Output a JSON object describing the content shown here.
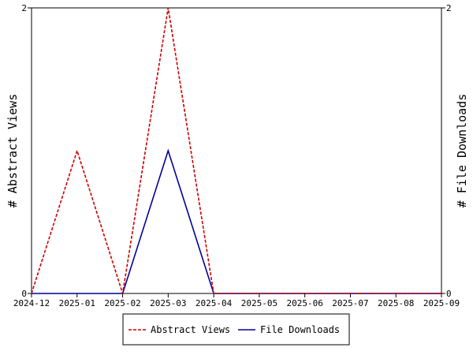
{
  "chart_data": {
    "type": "line",
    "x": [
      "2024-12",
      "2025-01",
      "2025-02",
      "2025-03",
      "2025-04",
      "2025-05",
      "2025-06",
      "2025-07",
      "2025-08",
      "2025-09"
    ],
    "series": [
      {
        "name": "Abstract Views",
        "axis": "left",
        "color": "#cc0000",
        "dash": "dashed",
        "values": [
          0,
          1,
          0,
          2,
          0,
          0,
          0,
          0,
          0,
          0
        ]
      },
      {
        "name": "File Downloads",
        "axis": "right",
        "color": "#000099",
        "dash": "solid",
        "values": [
          0,
          0,
          0,
          1,
          0,
          0,
          0,
          0,
          0,
          0
        ]
      }
    ],
    "ylabel": "# Abstract Views",
    "y2label": "# File Downloads",
    "ylim": [
      0,
      2
    ],
    "y2lim": [
      0,
      2
    ],
    "yticks": [
      "0",
      "2"
    ],
    "y2ticks": [
      "0",
      "2"
    ],
    "legend_position": "bottom-center",
    "grid": false
  }
}
